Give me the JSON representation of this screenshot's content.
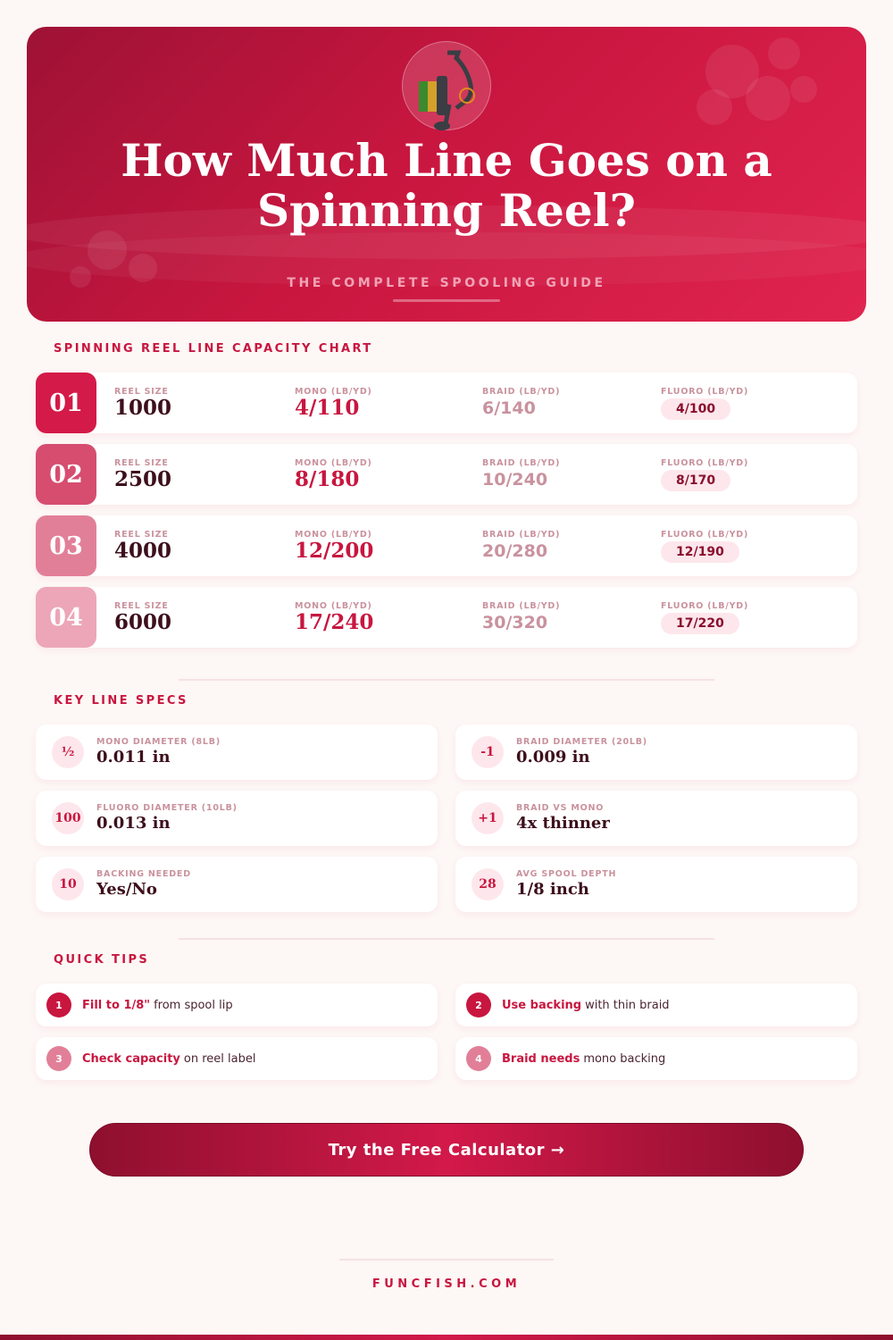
{
  "hero": {
    "title": "How Much Line Goes on a Spinning Reel?",
    "subtitle": "THE COMPLETE SPOOLING GUIDE",
    "logo_icon": "spinning-reel-icon"
  },
  "chart_section": {
    "heading": "SPINNING REEL LINE CAPACITY CHART",
    "labels": {
      "size": "REEL SIZE",
      "mono": "MONO (LB/YD)",
      "braid": "BRAID (LB/YD)",
      "fluoro": "FLUORO (LB/YD)"
    },
    "rows": [
      {
        "num": "01",
        "size": "1000",
        "mono": "4/110",
        "braid": "6/140",
        "fluoro": "4/100",
        "color": "#d41a48"
      },
      {
        "num": "02",
        "size": "2500",
        "mono": "8/180",
        "braid": "10/240",
        "fluoro": "8/170",
        "color": "#d64d70"
      },
      {
        "num": "03",
        "size": "4000",
        "mono": "12/200",
        "braid": "20/280",
        "fluoro": "12/190",
        "color": "#e27f98"
      },
      {
        "num": "04",
        "size": "6000",
        "mono": "17/240",
        "braid": "30/320",
        "fluoro": "17/220",
        "color": "#eca6b7"
      }
    ]
  },
  "specs": {
    "heading": "KEY LINE SPECS",
    "items": [
      {
        "icon": "½",
        "label": "MONO DIAMETER (8LB)",
        "value": "0.011 in"
      },
      {
        "icon": "-1",
        "label": "BRAID DIAMETER (20LB)",
        "value": "0.009 in"
      },
      {
        "icon": "100",
        "label": "FLUORO DIAMETER (10LB)",
        "value": "0.013 in"
      },
      {
        "icon": "+1",
        "label": "BRAID VS MONO",
        "value": "4x thinner"
      },
      {
        "icon": "10",
        "label": "BACKING NEEDED",
        "value": "Yes/No"
      },
      {
        "icon": "28",
        "label": "AVG SPOOL DEPTH",
        "value": "1/8 inch"
      }
    ]
  },
  "tips": {
    "heading": "QUICK TIPS",
    "items": [
      {
        "num": "1",
        "bold": "Fill to 1/8\"",
        "text": "from spool lip"
      },
      {
        "num": "2",
        "bold": "Use backing",
        "text": "with thin braid"
      },
      {
        "num": "3",
        "bold": "Check capacity",
        "text": "on reel label"
      },
      {
        "num": "4",
        "bold": "Braid needs",
        "text": "mono backing"
      }
    ]
  },
  "cta": {
    "label": "Try the Free Calculator →"
  },
  "footer": {
    "site": "FUNCFISH.COM"
  },
  "colors": {
    "accent": "#c8163f",
    "dark": "#3d0f1c",
    "muted": "#c9929e"
  }
}
